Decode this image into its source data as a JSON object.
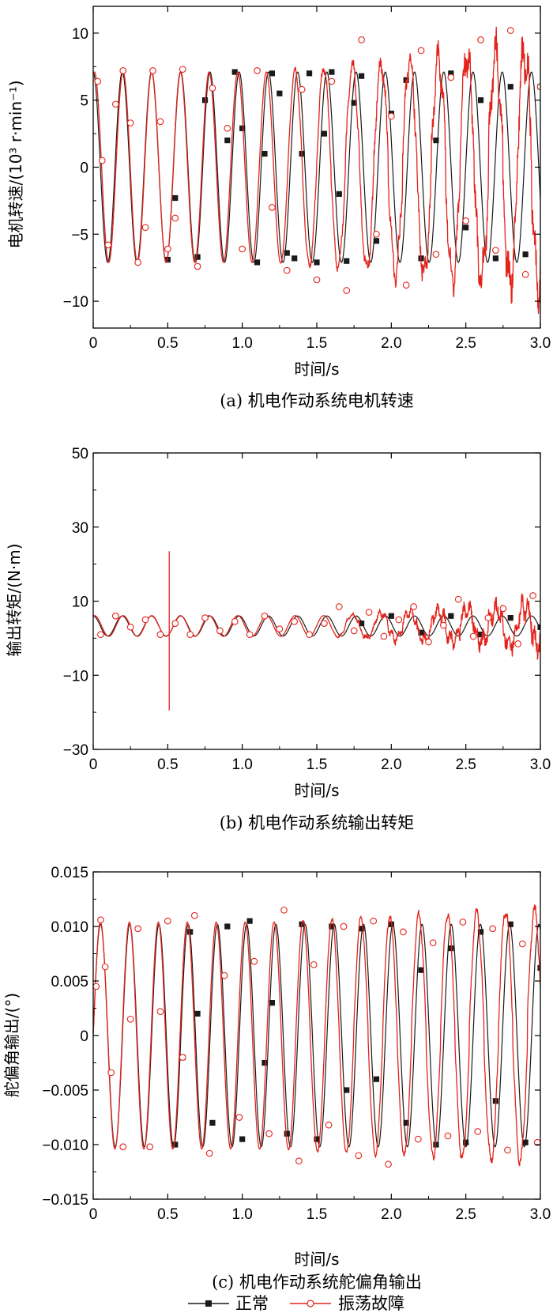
{
  "figure": {
    "legend": {
      "normal": "正常",
      "fault": "振荡故障",
      "placement": "bottom-center"
    }
  },
  "colors": {
    "normal": "#1a1a1a",
    "fault": "#e3231b",
    "axis": "#000000"
  },
  "chart_data": [
    {
      "id": "a",
      "type": "line",
      "caption": "(a) 机电作动系统电机转速",
      "xlabel": "时间/s",
      "ylabel": "电机转速/(10³ r·min⁻¹)",
      "xlim": [
        0,
        3.0
      ],
      "ylim": [
        -12,
        12
      ],
      "xticks": [
        0,
        0.5,
        1.0,
        1.5,
        2.0,
        2.5,
        3.0
      ],
      "xtick_labels": [
        "0",
        "0.5",
        "1.0",
        "1.5",
        "2.0",
        "2.5",
        "3.0"
      ],
      "yticks": [
        -10,
        -5,
        0,
        5,
        10
      ],
      "ytick_labels": [
        "−10",
        "−5",
        "0",
        "5",
        "10"
      ],
      "grid": false,
      "series": [
        {
          "name": "正常",
          "key": "normal",
          "marker": "filled-square",
          "model": {
            "base": 0,
            "amp": 7.1,
            "freq": 5.1,
            "phase": 1.6,
            "ramp": 0,
            "noise": 0,
            "start": 0
          },
          "x": [
            0.5,
            0.55,
            0.7,
            0.75,
            0.9,
            0.95,
            1.0,
            1.1,
            1.15,
            1.2,
            1.25,
            1.3,
            1.35,
            1.4,
            1.45,
            1.5,
            1.55,
            1.6,
            1.65,
            1.7,
            1.75,
            1.8,
            1.9,
            2.0,
            2.1,
            2.2,
            2.3,
            2.4,
            2.5,
            2.6,
            2.7,
            2.8,
            2.9,
            3.0
          ],
          "y": [
            -6.9,
            -2.3,
            -6.7,
            5.0,
            2.0,
            7.1,
            2.9,
            -7.1,
            1.0,
            7.0,
            5.5,
            -6.4,
            -6.8,
            1.0,
            7.0,
            -7.1,
            2.5,
            7.1,
            -2.0,
            -7.0,
            4.8,
            6.8,
            -5.5,
            4.0,
            6.5,
            -6.8,
            2.0,
            7.0,
            -4.5,
            5.0,
            -6.8,
            6.0,
            -6.5,
            6.0
          ]
        },
        {
          "name": "振荡故障",
          "key": "fault",
          "marker": "open-circle",
          "model": {
            "base": 0,
            "amp": 7.1,
            "freq": 5.2,
            "phase": 1.3,
            "ramp": 1.6,
            "noise": 2.8,
            "start": 1.2
          },
          "x": [
            0.03,
            0.06,
            0.1,
            0.15,
            0.2,
            0.25,
            0.3,
            0.35,
            0.4,
            0.45,
            0.5,
            0.55,
            0.6,
            0.7,
            0.8,
            0.9,
            1.0,
            1.1,
            1.2,
            1.3,
            1.4,
            1.5,
            1.6,
            1.7,
            1.8,
            1.9,
            2.0,
            2.1,
            2.2,
            2.3,
            2.4,
            2.5,
            2.6,
            2.7,
            2.8,
            2.9,
            3.0
          ],
          "y": [
            6.4,
            0.5,
            -5.8,
            4.7,
            7.2,
            3.3,
            -7.1,
            -4.5,
            7.2,
            3.4,
            -6.1,
            -3.8,
            7.3,
            -7.4,
            5.9,
            2.9,
            -6.1,
            7.2,
            -3.0,
            -7.7,
            5.8,
            -8.4,
            6.4,
            -9.2,
            9.5,
            -5.0,
            3.8,
            -8.8,
            8.7,
            -6.5,
            6.7,
            -4.0,
            9.5,
            -6.2,
            10.2,
            -8.0,
            6.0
          ]
        }
      ]
    },
    {
      "id": "b",
      "type": "line",
      "caption": "(b) 机电作动系统输出转矩",
      "xlabel": "时间/s",
      "ylabel": "输出转矩/(N·m)",
      "xlim": [
        0,
        3.0
      ],
      "ylim": [
        -30,
        50
      ],
      "xticks": [
        0,
        0.5,
        1.0,
        1.5,
        2.0,
        2.5,
        3.0
      ],
      "xtick_labels": [
        "0",
        "0.5",
        "1.0",
        "1.5",
        "2.0",
        "2.5",
        "3.0"
      ],
      "yticks": [
        -30,
        -10,
        10,
        30,
        50
      ],
      "ytick_labels": [
        "−30",
        "−10",
        "10",
        "30",
        "50"
      ],
      "grid": false,
      "series": [
        {
          "name": "正常",
          "key": "normal",
          "marker": "filled-square",
          "model": {
            "base": 3.3,
            "amp": 2.7,
            "freq": 5.1,
            "phase": 1.6,
            "ramp": 0,
            "noise": 0,
            "start": 0
          },
          "x": [
            1.8,
            2.0,
            2.2,
            2.4,
            2.6,
            2.8,
            3.0
          ],
          "y": [
            4.0,
            6.0,
            1.5,
            6.0,
            1.0,
            5.5,
            3.0
          ]
        },
        {
          "name": "振荡故障",
          "key": "fault",
          "marker": "open-circle",
          "model": {
            "base": 3.3,
            "amp": 2.8,
            "freq": 5.2,
            "phase": 1.3,
            "ramp": 2.0,
            "noise": 5.5,
            "start": 1.55
          },
          "spike": {
            "x": 0.51,
            "max": 23.5,
            "min": -19.5
          },
          "x": [
            0.05,
            0.15,
            0.25,
            0.35,
            0.45,
            0.55,
            0.65,
            0.75,
            0.85,
            0.95,
            1.05,
            1.15,
            1.25,
            1.35,
            1.45,
            1.55,
            1.65,
            1.75,
            1.85,
            1.95,
            2.05,
            2.15,
            2.25,
            2.35,
            2.45,
            2.55,
            2.65,
            2.75,
            2.85,
            2.95
          ],
          "y": [
            1.0,
            6.0,
            3.0,
            5.0,
            1.0,
            4.0,
            1.0,
            5.5,
            2.0,
            4.5,
            1.0,
            6.0,
            2.5,
            4.5,
            1.0,
            4.0,
            8.5,
            2.0,
            7.0,
            0.5,
            5.0,
            8.5,
            -1.0,
            3.5,
            10.5,
            0.5,
            5.5,
            8.0,
            -1.5,
            11.5
          ]
        }
      ]
    },
    {
      "id": "c",
      "type": "line",
      "caption": "(c) 机电作动系统舵偏角输出",
      "xlabel": "时间/s",
      "ylabel": "舵偏角输出/(°)",
      "xlim": [
        0,
        3.0
      ],
      "ylim": [
        -0.015,
        0.015
      ],
      "xticks": [
        0,
        0.5,
        1.0,
        1.5,
        2.0,
        2.5,
        3.0
      ],
      "xtick_labels": [
        "0",
        "0.5",
        "1.0",
        "1.5",
        "2.0",
        "2.5",
        "3.0"
      ],
      "yticks": [
        -0.015,
        -0.01,
        -0.005,
        0,
        0.005,
        0.01,
        0.015
      ],
      "ytick_labels": [
        "−0.015",
        "−0.010",
        "−0.005",
        "0",
        "0.005",
        "0.010",
        "0.015"
      ],
      "grid": false,
      "series": [
        {
          "name": "正常",
          "key": "normal",
          "marker": "filled-square",
          "model": {
            "base": 0,
            "amp": 0.0102,
            "freq": 5.1,
            "phase": 0.0,
            "ramp": 0,
            "noise": 0,
            "start": 0
          },
          "x": [
            0.55,
            0.6,
            0.65,
            0.7,
            0.8,
            0.9,
            1.0,
            1.05,
            1.15,
            1.2,
            1.3,
            1.4,
            1.5,
            1.6,
            1.7,
            1.8,
            1.9,
            2.0,
            2.1,
            2.2,
            2.3,
            2.4,
            2.5,
            2.6,
            2.7,
            2.8,
            2.9,
            3.0
          ],
          "y": [
            -0.01,
            -0.002,
            0.0095,
            0.002,
            -0.008,
            0.01,
            -0.0095,
            0.0105,
            -0.0025,
            0.003,
            -0.009,
            0.0102,
            -0.0095,
            0.01,
            -0.005,
            0.0098,
            -0.004,
            0.0102,
            -0.008,
            0.006,
            -0.01,
            0.008,
            -0.0098,
            0.0095,
            -0.006,
            0.0102,
            -0.0098,
            0.0062
          ]
        },
        {
          "name": "振荡故障",
          "key": "fault",
          "marker": "open-circle",
          "model": {
            "base": 0,
            "amp": 0.0104,
            "freq": 5.15,
            "phase": 0.0,
            "ramp": 0.0012,
            "noise": 0.0008,
            "start": 1.2
          },
          "x": [
            0.02,
            0.05,
            0.08,
            0.12,
            0.2,
            0.25,
            0.3,
            0.38,
            0.45,
            0.5,
            0.6,
            0.68,
            0.78,
            0.88,
            0.98,
            1.08,
            1.18,
            1.28,
            1.38,
            1.48,
            1.58,
            1.68,
            1.78,
            1.88,
            1.98,
            2.08,
            2.18,
            2.28,
            2.38,
            2.48,
            2.58,
            2.68,
            2.78,
            2.88,
            2.98
          ],
          "y": [
            0.0045,
            0.0106,
            0.0063,
            -0.0034,
            -0.0102,
            0.0015,
            0.0098,
            -0.0102,
            0.0022,
            0.0105,
            -0.002,
            0.011,
            -0.0108,
            0.0055,
            -0.0075,
            0.0068,
            -0.009,
            0.0115,
            -0.0115,
            0.0065,
            -0.0082,
            0.01,
            -0.011,
            0.0105,
            -0.0118,
            0.0095,
            -0.0095,
            0.0085,
            -0.0092,
            0.0104,
            -0.0088,
            0.0098,
            -0.0105,
            0.0084,
            -0.0098
          ]
        }
      ]
    }
  ]
}
